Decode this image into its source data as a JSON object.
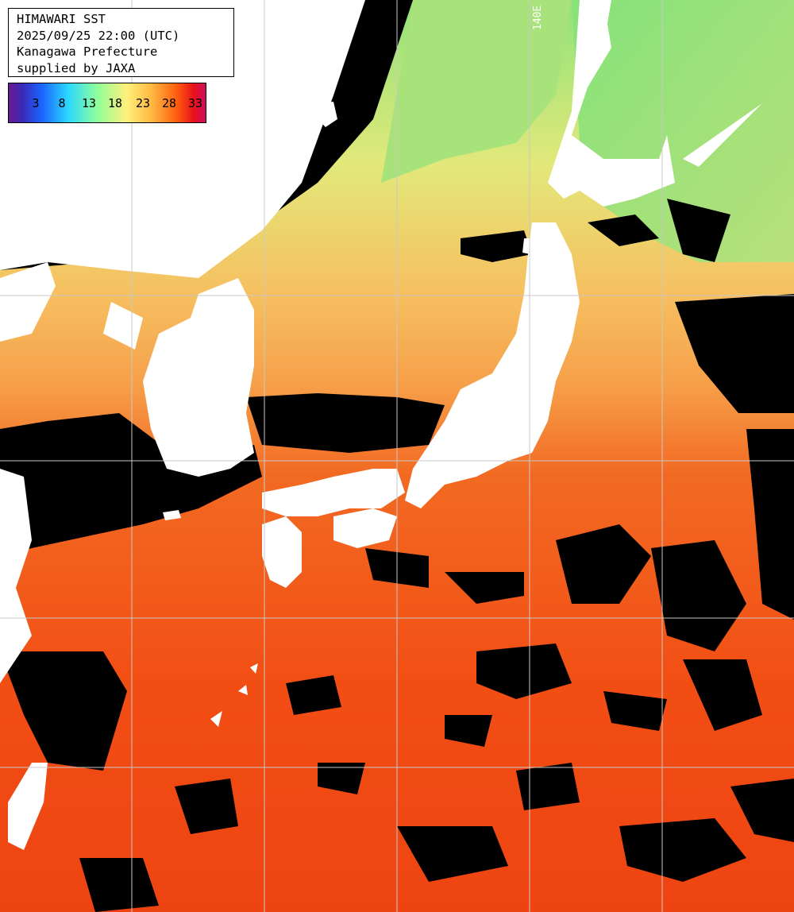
{
  "info": {
    "title": "HIMAWARI SST",
    "datetime": "2025/09/25 22:00 (UTC)",
    "region": "Kanagawa Prefecture",
    "credit": "supplied by JAXA"
  },
  "legend": {
    "labels": [
      "3",
      "8",
      "13",
      "18",
      "23",
      "28",
      "33"
    ],
    "unit_hint": "sea surface temperature",
    "colors": {
      "cold": "#6a1890",
      "cool": "#2ad8ff",
      "mild": "#8fff9a",
      "warm": "#fff07a",
      "hot": "#ff6010",
      "very_hot": "#cc1060"
    }
  },
  "map": {
    "longitude_label": "140E",
    "land_color": "#ffffff",
    "cloud_color": "#000000",
    "grid_color": "#c8c8c8"
  }
}
